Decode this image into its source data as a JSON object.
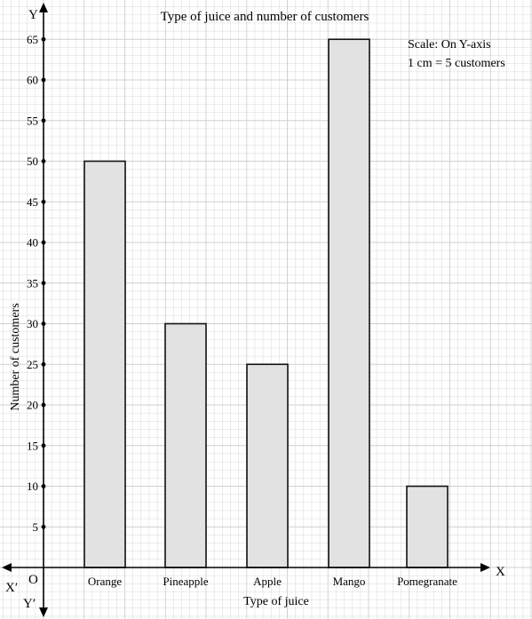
{
  "chart_data": {
    "type": "bar",
    "title": "Type of juice and number of customers",
    "xlabel": "Type of juice",
    "ylabel": "Number of customers",
    "categories": [
      "Orange",
      "Pineapple",
      "Apple",
      "Mango",
      "Pomegranate"
    ],
    "values": [
      50,
      30,
      25,
      65,
      10
    ],
    "ylim": [
      0,
      70
    ],
    "yticks": [
      5,
      10,
      15,
      20,
      25,
      30,
      35,
      40,
      45,
      50,
      55,
      60,
      65
    ],
    "grid": true,
    "scale_note": [
      "Scale: On Y-axis",
      "1 cm = 5 customers"
    ],
    "axis_letters": {
      "x": "X",
      "x_neg": "X′",
      "y": "Y",
      "y_neg": "Y′",
      "origin": "O"
    },
    "colors": {
      "bar_fill": "#e2e2e2",
      "bar_stroke": "#111111",
      "grid": "#cfcfcf",
      "axis": "#000000"
    }
  }
}
